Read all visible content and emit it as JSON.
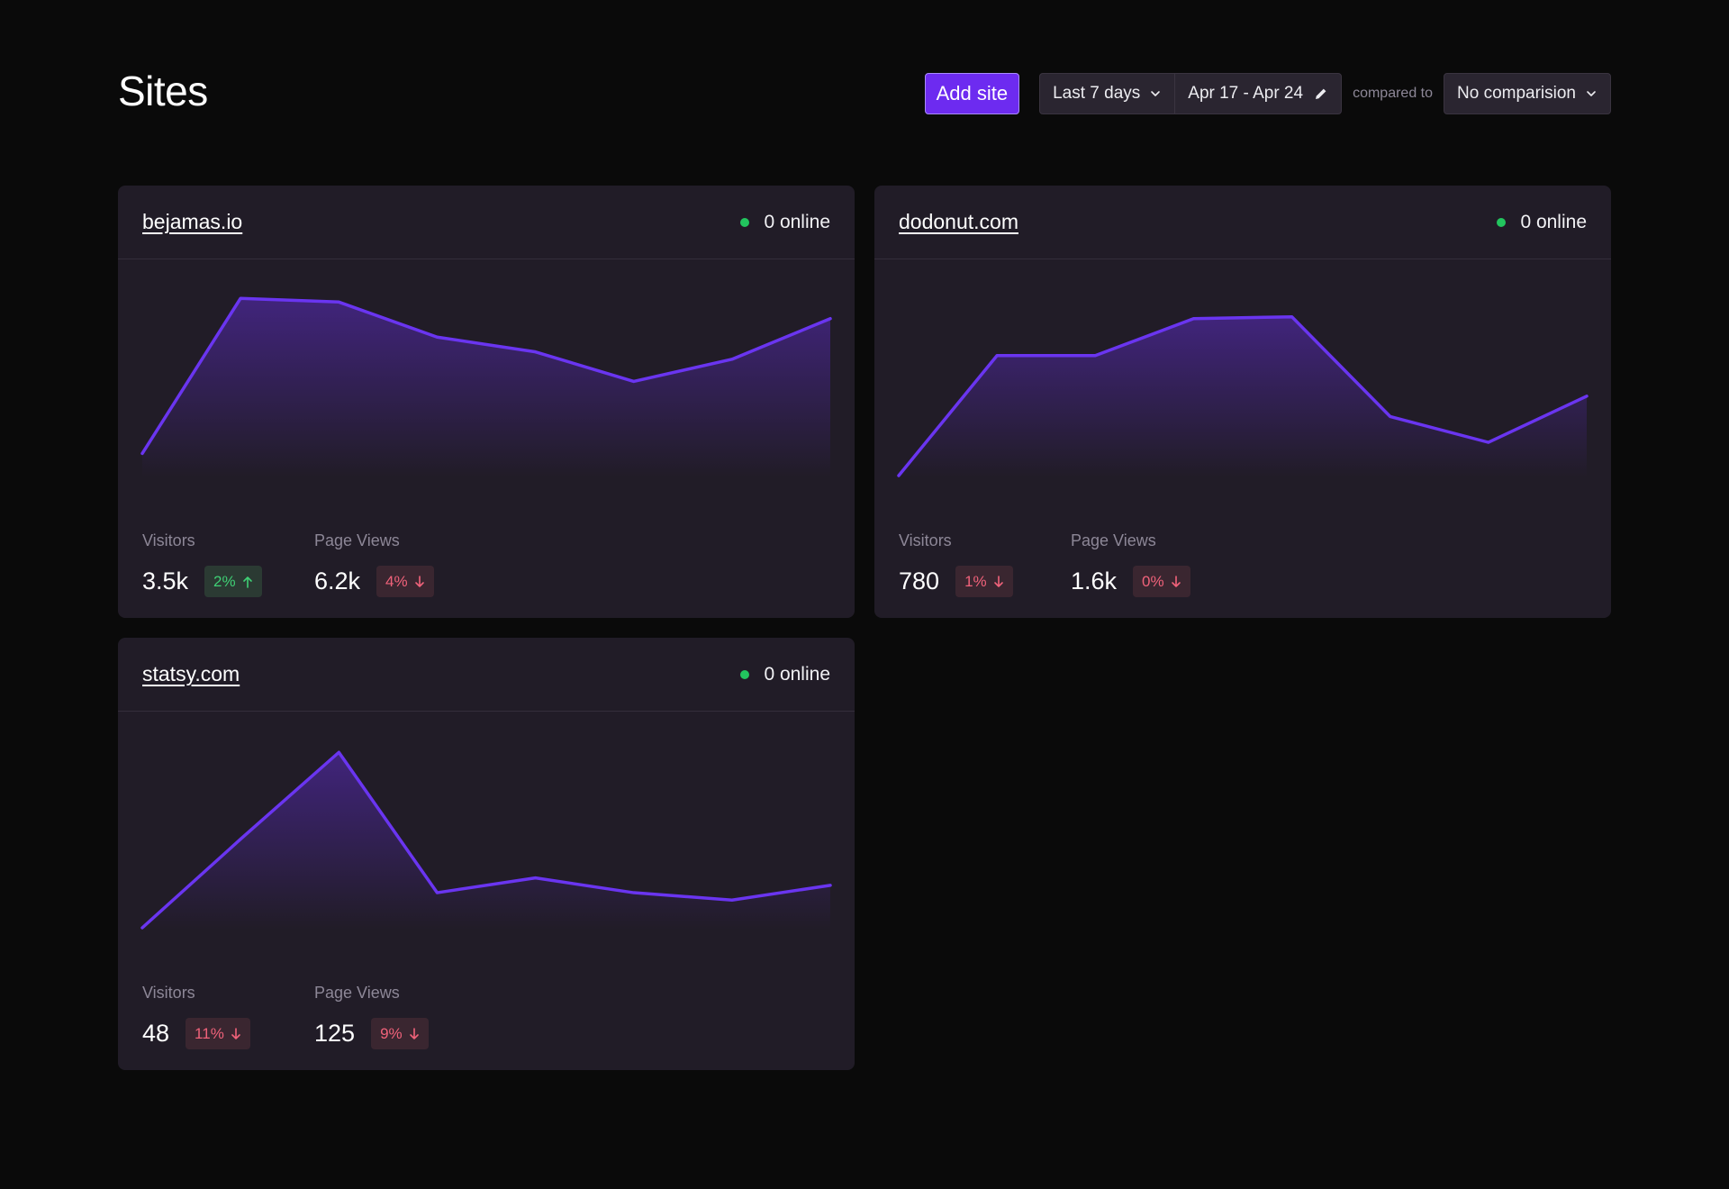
{
  "page": {
    "title": "Sites"
  },
  "toolbar": {
    "add_site_label": "Add site",
    "period_label": "Last 7 days",
    "date_range_label": "Apr 17 - Apr 24",
    "compared_label": "compared to",
    "comparison_label": "No comparision"
  },
  "colors": {
    "accent": "#6d2bf0",
    "line": "#6a35f0",
    "online_dot": "#22c55e",
    "up": "#3fcf74",
    "down": "#f0627a"
  },
  "sites": [
    {
      "name": "bejamas.io",
      "online": "0 online",
      "visitors_label": "Visitors",
      "visitors": "3.5k",
      "visitors_change": "2%",
      "visitors_trend": "up",
      "pageviews_label": "Page Views",
      "pageviews": "6.2k",
      "pageviews_change": "4%",
      "pageviews_trend": "down"
    },
    {
      "name": "dodonut.com",
      "online": "0 online",
      "visitors_label": "Visitors",
      "visitors": "780",
      "visitors_change": "1%",
      "visitors_trend": "down",
      "pageviews_label": "Page Views",
      "pageviews": "1.6k",
      "pageviews_change": "0%",
      "pageviews_trend": "down"
    },
    {
      "name": "statsy.com",
      "online": "0 online",
      "visitors_label": "Visitors",
      "visitors": "48",
      "visitors_change": "11%",
      "visitors_trend": "down",
      "pageviews_label": "Page Views",
      "pageviews": "125",
      "pageviews_change": "9%",
      "pageviews_trend": "down"
    }
  ],
  "chart_data": [
    {
      "type": "area",
      "site": "bejamas.io",
      "values": [
        12,
        96,
        94,
        75,
        67,
        51,
        63,
        85
      ],
      "ylim": [
        0,
        100
      ]
    },
    {
      "type": "area",
      "site": "dodonut.com",
      "values": [
        0,
        65,
        65,
        85,
        86,
        32,
        18,
        43
      ],
      "ylim": [
        0,
        100
      ]
    },
    {
      "type": "area",
      "site": "statsy.com",
      "values": [
        0,
        48,
        95,
        19,
        27,
        19,
        15,
        23
      ],
      "ylim": [
        0,
        100
      ]
    }
  ]
}
